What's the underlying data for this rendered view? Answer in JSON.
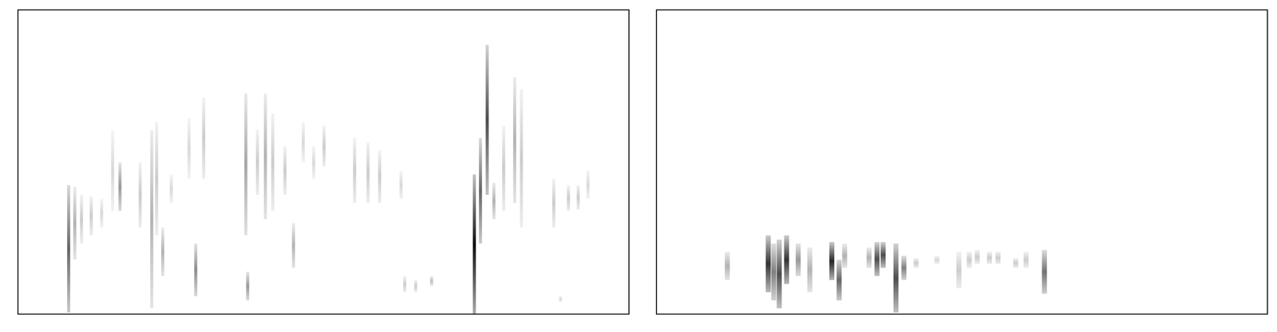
{
  "chart_data": [
    {
      "type": "spectrogram",
      "xlim": [
        0,
        100
      ],
      "ylim": [
        0,
        100
      ],
      "tick_labels": false,
      "color": "#000000",
      "streaks": {
        "x": [
          8.3,
          9.3,
          10.4,
          12.0,
          13.7,
          15.5,
          16.7,
          20.0,
          21.9,
          22.7,
          23.7,
          25.1,
          28.0,
          29.1,
          30.4,
          37.3,
          37.6,
          39.2,
          40.5,
          41.7,
          43.7,
          45.1,
          46.7,
          48.4,
          50.1,
          55.1,
          57.3,
          59.2,
          62.7,
          63.3,
          65.1,
          67.7,
          74.7,
          75.7,
          76.8,
          77.9,
          79.5,
          81.3,
          82.4,
          87.7,
          90.1,
          91.7,
          93.3,
          88.8
        ],
        "y_low": [
          0.5,
          17.9,
          23.2,
          25.9,
          28.5,
          33.9,
          33.9,
          28.5,
          1.9,
          25.9,
          12.5,
          36.5,
          44.5,
          5.9,
          44.5,
          25.9,
          4.5,
          39.2,
          31.2,
          33.9,
          39.2,
          15.2,
          49.9,
          44.5,
          48.5,
          36.5,
          36.5,
          36.5,
          37.9,
          7.2,
          7.2,
          9.3,
          0,
          23.2,
          39.2,
          31.2,
          33.9,
          36.5,
          28.5,
          28.5,
          33.9,
          34.4,
          37.9,
          4.0
        ],
        "y_high": [
          42.4,
          41.9,
          39.2,
          38.7,
          37.9,
          60.5,
          49.9,
          49.9,
          60.5,
          63.2,
          28.5,
          45.9,
          64.5,
          23.2,
          71.2,
          72.5,
          13.9,
          60.5,
          72.5,
          65.9,
          55.2,
          29.9,
          63.2,
          55.2,
          61.9,
          57.9,
          56.5,
          53.9,
          47.2,
          12.5,
          11.2,
          12.5,
          45.9,
          57.9,
          88.5,
          43.2,
          61.9,
          77.9,
          73.9,
          44.5,
          42.4,
          42.4,
          47.2,
          5.9
        ],
        "intensity": [
          0.6,
          0.3,
          0.2,
          0.2,
          0.15,
          0.15,
          0.4,
          0.2,
          0.3,
          0.2,
          0.3,
          0.15,
          0.15,
          0.45,
          0.2,
          0.35,
          0.4,
          0.2,
          0.3,
          0.2,
          0.2,
          0.3,
          0.15,
          0.15,
          0.2,
          0.2,
          0.2,
          0.2,
          0.15,
          0.2,
          0.2,
          0.25,
          0.95,
          0.6,
          0.7,
          0.3,
          0.2,
          0.3,
          0.2,
          0.2,
          0.2,
          0.2,
          0.15,
          0.15
        ]
      }
    },
    {
      "type": "spectrogram",
      "xlim": [
        0,
        100
      ],
      "ylim": [
        0,
        100
      ],
      "tick_labels": false,
      "color": "#000000",
      "streaks": {
        "x": [
          11.6,
          18.3,
          19.2,
          20.1,
          21.3,
          23.2,
          25.1,
          28.7,
          29.9,
          30.8,
          34.8,
          36.1,
          37.1,
          39.2,
          40.5,
          42.5,
          45.9,
          49.5,
          51.2,
          52.5,
          54.5,
          55.9,
          58.8,
          60.5,
          63.5
        ],
        "y_low": [
          11.2,
          7.2,
          4.5,
          1.9,
          9.9,
          12.5,
          7.2,
          11.2,
          4.5,
          15.2,
          15.2,
          12.5,
          15.2,
          0.5,
          11.2,
          15.2,
          16.5,
          8.5,
          15.2,
          16.5,
          16.5,
          16.5,
          15.2,
          15.2,
          6.7
        ],
        "y_high": [
          20.5,
          25.9,
          23.2,
          24.5,
          25.9,
          23.2,
          21.9,
          23.7,
          17.9,
          23.2,
          21.9,
          23.7,
          23.7,
          23.2,
          19.2,
          18.4,
          19.2,
          20.5,
          20.5,
          21.1,
          20.5,
          20.5,
          18.4,
          20.5,
          21.1
        ],
        "intensity": [
          0.3,
          0.8,
          0.5,
          0.7,
          0.8,
          0.4,
          0.3,
          0.85,
          0.6,
          0.3,
          0.3,
          0.7,
          0.7,
          0.7,
          0.5,
          0.2,
          0.15,
          0.2,
          0.2,
          0.2,
          0.2,
          0.2,
          0.2,
          0.2,
          0.55
        ]
      }
    }
  ]
}
